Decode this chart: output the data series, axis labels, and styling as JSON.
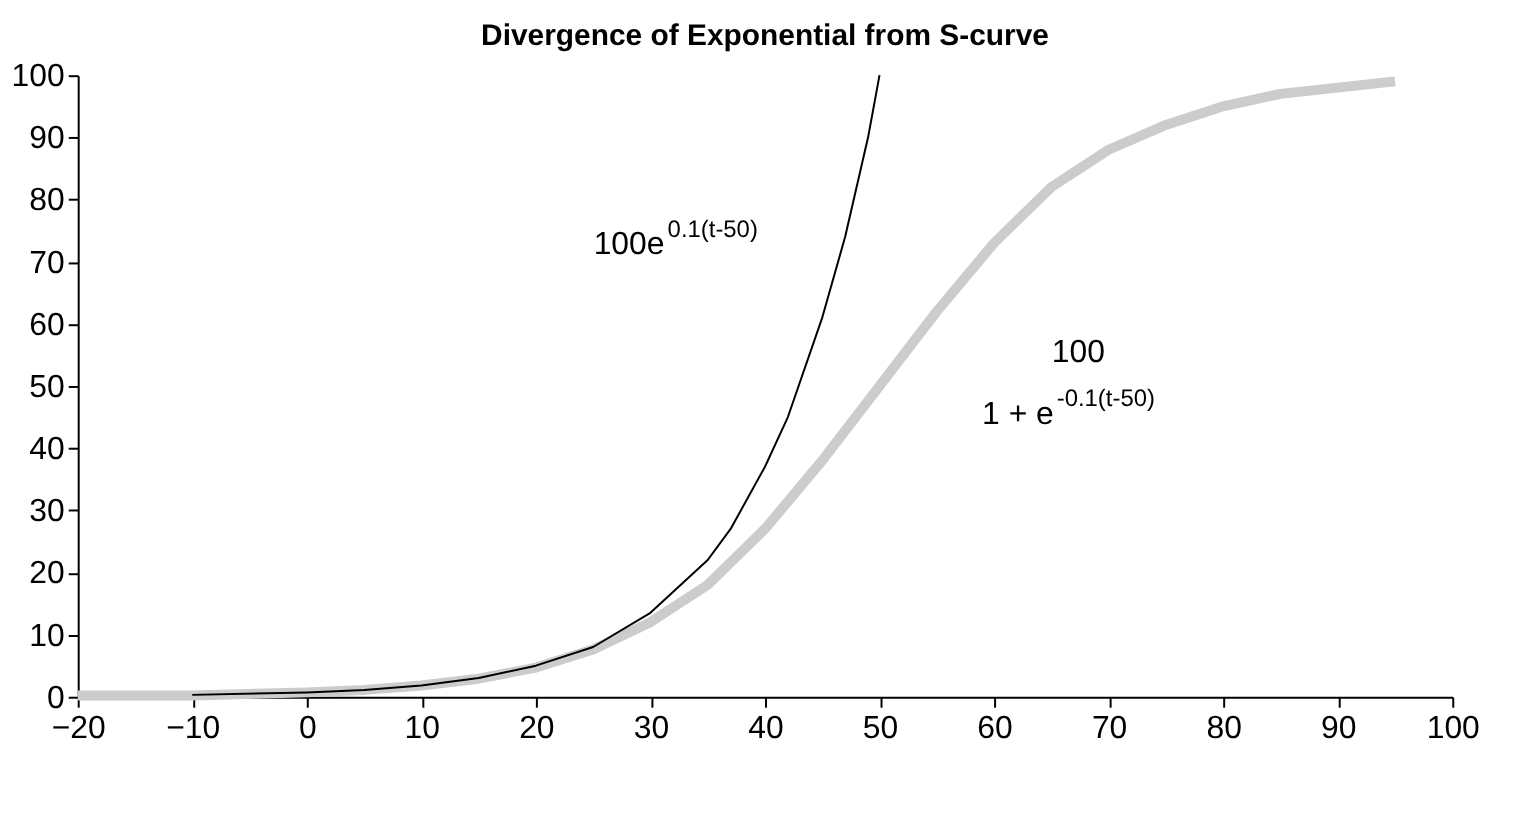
{
  "chart_data": {
    "type": "line",
    "title": "Divergence of Exponential from S-curve",
    "series": [
      {
        "color": "#cccccc",
        "x": [
          -20,
          -10,
          0,
          5,
          10,
          15,
          20,
          25,
          30,
          35,
          40,
          45,
          50,
          55,
          60,
          65,
          70,
          75,
          80,
          85,
          90,
          95
        ],
        "values": [
          0.2,
          0.2,
          0.7,
          1.1,
          1.8,
          2.9,
          4.7,
          7.6,
          12,
          18,
          27,
          38,
          50,
          62,
          73,
          82,
          88,
          92,
          95,
          97,
          98,
          99
        ]
      },
      {
        "color": "#000000",
        "x": [
          -10,
          0,
          5,
          10,
          15,
          20,
          25,
          30,
          35,
          37,
          40,
          42,
          45,
          47,
          49,
          50
        ],
        "values": [
          0.3,
          0.7,
          1.1,
          1.8,
          3,
          5,
          8,
          13.5,
          22,
          27,
          37,
          45,
          61,
          74,
          90,
          100
        ]
      }
    ],
    "xlim": [
      -20,
      100
    ],
    "xticks": [
      -20,
      -10,
      0,
      10,
      20,
      30,
      40,
      50,
      60,
      70,
      80,
      90,
      100
    ],
    "ylim": [
      0,
      100
    ],
    "yticks": [
      0,
      10,
      20,
      30,
      40,
      50,
      60,
      70,
      80,
      90,
      100
    ],
    "grid": false,
    "marker": "none",
    "line_style": "solid",
    "annotations": [
      "100e$^{0.1(t-50)}$",
      "100",
      "1 + e$^{-0.1(t-50)}$"
    ]
  }
}
